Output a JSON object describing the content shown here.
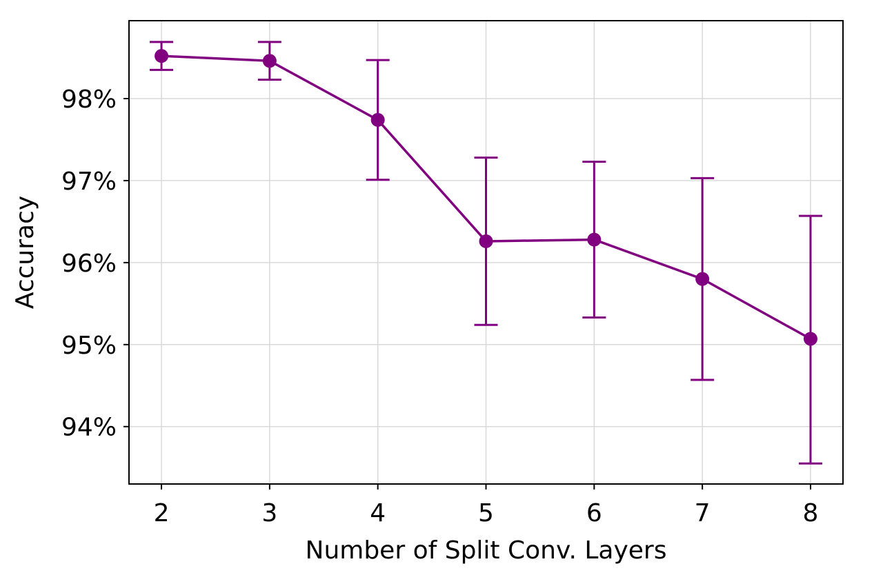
{
  "chart_data": {
    "type": "line",
    "title": "",
    "xlabel": "Number of Split Conv. Layers",
    "ylabel": "Accuracy",
    "x": [
      2,
      3,
      4,
      5,
      6,
      7,
      8
    ],
    "x_ticks": [
      2,
      3,
      4,
      5,
      6,
      7,
      8
    ],
    "x_tick_labels": [
      "2",
      "3",
      "4",
      "5",
      "6",
      "7",
      "8"
    ],
    "xlim": [
      1.7,
      8.3
    ],
    "ylim": [
      93.3,
      98.95
    ],
    "y_ticks": [
      94,
      95,
      96,
      97,
      98
    ],
    "y_tick_labels": [
      "94%",
      "95%",
      "96%",
      "97%",
      "98%"
    ],
    "grid": true,
    "series": [
      {
        "color": "#800080",
        "marker": "circle",
        "values": [
          98.52,
          98.46,
          97.74,
          96.26,
          96.28,
          95.8,
          95.07
        ],
        "error_lower": [
          98.35,
          98.23,
          97.01,
          95.24,
          95.33,
          94.57,
          93.55
        ],
        "error_upper": [
          98.69,
          98.69,
          98.47,
          97.28,
          97.23,
          97.03,
          96.57
        ]
      }
    ]
  }
}
